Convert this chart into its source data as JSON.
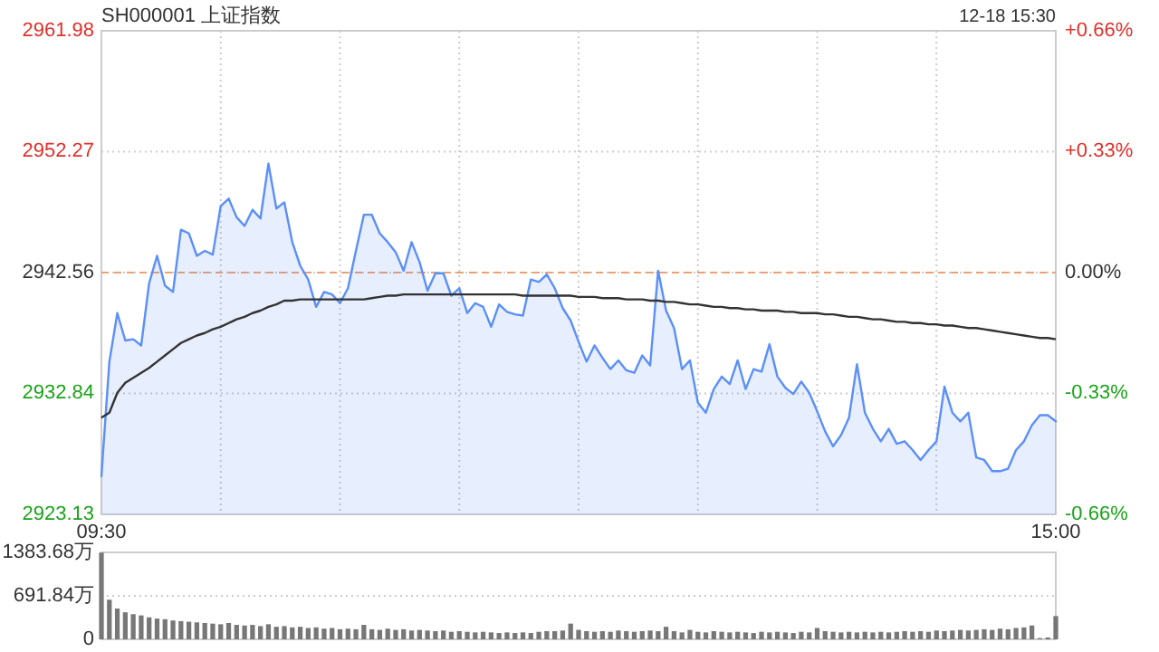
{
  "chart_data": [
    {
      "type": "line",
      "title": "SH000001 上证指数",
      "subtitle": "12-18 15:30",
      "categories": [
        "09:30",
        null,
        null,
        null,
        null,
        null,
        null,
        null,
        null,
        null,
        null,
        null,
        null,
        null,
        null,
        null,
        null,
        null,
        null,
        null,
        null,
        null,
        null,
        null,
        null,
        null,
        null,
        null,
        null,
        null,
        null,
        null,
        null,
        null,
        null,
        null,
        null,
        null,
        null,
        null,
        null,
        null,
        null,
        null,
        null,
        null,
        null,
        null,
        null,
        null,
        null,
        null,
        null,
        null,
        null,
        null,
        null,
        null,
        null,
        null,
        null,
        null,
        null,
        null,
        null,
        null,
        null,
        null,
        null,
        null,
        null,
        null,
        null,
        null,
        null,
        null,
        null,
        null,
        null,
        null,
        null,
        null,
        null,
        null,
        null,
        null,
        null,
        null,
        null,
        null,
        null,
        null,
        null,
        null,
        null,
        null,
        null,
        null,
        null,
        null,
        null,
        null,
        null,
        null,
        null,
        null,
        null,
        null,
        null,
        null,
        null,
        null,
        null,
        null,
        null,
        null,
        null,
        null,
        null,
        null,
        "15:00"
      ],
      "ylim": [
        2923.13,
        2961.98
      ],
      "yticks": [
        2923.13,
        2932.84,
        2942.56,
        2952.27,
        2961.98
      ],
      "y2lim": [
        -0.66,
        0.66
      ],
      "y2ticks": [
        {
          "value": -0.66,
          "label": "-0.66%"
        },
        {
          "value": -0.33,
          "label": "-0.33%"
        },
        {
          "value": 0,
          "label": "0.00%"
        },
        {
          "value": 0.33,
          "label": "+0.33%"
        },
        {
          "value": 0.66,
          "label": "+0.66%"
        }
      ],
      "grid": true,
      "marker": "none",
      "ref_lines": [
        {
          "axis": "y",
          "value": 2942.56,
          "color": "#f0a070",
          "line_style": "dashed"
        }
      ],
      "series": [
        {
          "type": "area",
          "color": "#5b8ff9",
          "values": [
            2926.2,
            2935.4,
            2939.3,
            2937.1,
            2937.2,
            2936.7,
            2941.7,
            2943.9,
            2941.5,
            2941.0,
            2946.0,
            2945.7,
            2943.9,
            2944.3,
            2944.0,
            2947.9,
            2948.5,
            2947.0,
            2946.3,
            2947.6,
            2946.9,
            2951.3,
            2947.7,
            2948.2,
            2945.0,
            2943.1,
            2942.0,
            2939.8,
            2941.0,
            2940.8,
            2940.1,
            2941.3,
            2944.3,
            2947.2,
            2947.2,
            2945.7,
            2945.0,
            2944.2,
            2942.7,
            2945.0,
            2943.4,
            2941.1,
            2942.5,
            2942.5,
            2940.7,
            2941.3,
            2939.3,
            2940.1,
            2939.8,
            2938.2,
            2940.0,
            2939.4,
            2939.2,
            2939.1,
            2942.0,
            2941.8,
            2942.4,
            2941.3,
            2939.7,
            2938.7,
            2937.0,
            2935.4,
            2936.7,
            2935.7,
            2934.8,
            2935.5,
            2934.7,
            2934.5,
            2935.9,
            2935.1,
            2942.7,
            2939.5,
            2938.1,
            2934.8,
            2935.5,
            2932.1,
            2931.3,
            2933.2,
            2934.2,
            2933.6,
            2935.5,
            2933.2,
            2934.8,
            2934.6,
            2936.8,
            2934.2,
            2933.3,
            2932.8,
            2933.8,
            2932.9,
            2931.4,
            2929.8,
            2928.6,
            2929.5,
            2930.9,
            2935.2,
            2931.3,
            2930.0,
            2929.0,
            2930.0,
            2928.8,
            2929.0,
            2928.3,
            2927.5,
            2928.3,
            2929.0,
            2933.4,
            2931.3,
            2930.6,
            2931.3,
            2927.7,
            2927.5,
            2926.6,
            2926.6,
            2926.8,
            2928.3,
            2929.0,
            2930.3,
            2931.1,
            2931.1,
            2930.6
          ]
        },
        {
          "color": "#333333",
          "values": [
            2930.9,
            2931.3,
            2932.9,
            2933.7,
            2934.1,
            2934.5,
            2934.9,
            2935.4,
            2935.9,
            2936.4,
            2936.9,
            2937.2,
            2937.5,
            2937.7,
            2938.0,
            2938.2,
            2938.5,
            2938.8,
            2939.0,
            2939.3,
            2939.5,
            2939.8,
            2940.0,
            2940.3,
            2940.3,
            2940.4,
            2940.4,
            2940.4,
            2940.4,
            2940.4,
            2940.4,
            2940.4,
            2940.4,
            2940.4,
            2940.5,
            2940.6,
            2940.7,
            2940.7,
            2940.8,
            2940.8,
            2940.8,
            2940.8,
            2940.8,
            2940.8,
            2940.8,
            2940.8,
            2940.8,
            2940.8,
            2940.8,
            2940.8,
            2940.8,
            2940.8,
            2940.8,
            2940.7,
            2940.7,
            2940.7,
            2940.7,
            2940.7,
            2940.7,
            2940.7,
            2940.6,
            2940.6,
            2940.6,
            2940.5,
            2940.5,
            2940.5,
            2940.4,
            2940.4,
            2940.4,
            2940.3,
            2940.3,
            2940.2,
            2940.2,
            2940.1,
            2940.0,
            2940.0,
            2939.9,
            2939.8,
            2939.8,
            2939.7,
            2939.7,
            2939.6,
            2939.6,
            2939.5,
            2939.5,
            2939.5,
            2939.4,
            2939.4,
            2939.3,
            2939.3,
            2939.3,
            2939.2,
            2939.2,
            2939.1,
            2939.0,
            2939.0,
            2938.9,
            2938.8,
            2938.8,
            2938.7,
            2938.6,
            2938.6,
            2938.5,
            2938.5,
            2938.4,
            2938.4,
            2938.3,
            2938.3,
            2938.2,
            2938.1,
            2938.1,
            2938.0,
            2937.9,
            2937.8,
            2937.7,
            2937.6,
            2937.5,
            2937.4,
            2937.3,
            2937.3,
            2937.2
          ]
        }
      ]
    },
    {
      "type": "bar",
      "categories": [
        null,
        null,
        null,
        null,
        null,
        null,
        null,
        null,
        null,
        null,
        null,
        null,
        null,
        null,
        null,
        null,
        null,
        null,
        null,
        null,
        null,
        null,
        null,
        null,
        null,
        null,
        null,
        null,
        null,
        null,
        null,
        null,
        null,
        null,
        null,
        null,
        null,
        null,
        null,
        null,
        null,
        null,
        null,
        null,
        null,
        null,
        null,
        null,
        null,
        null,
        null,
        null,
        null,
        null,
        null,
        null,
        null,
        null,
        null,
        null,
        null,
        null,
        null,
        null,
        null,
        null,
        null,
        null,
        null,
        null,
        null,
        null,
        null,
        null,
        null,
        null,
        null,
        null,
        null,
        null,
        null,
        null,
        null,
        null,
        null,
        null,
        null,
        null,
        null,
        null,
        null,
        null,
        null,
        null,
        null,
        null,
        null,
        null,
        null,
        null,
        null,
        null,
        null,
        null,
        null,
        null,
        null,
        null,
        null,
        null,
        null,
        null,
        null,
        null,
        null,
        null,
        null,
        null,
        null,
        null,
        null
      ],
      "ylim": [
        0,
        1383.68
      ],
      "yticks": [
        {
          "value": 0,
          "label": "0"
        },
        {
          "value": 691.84,
          "label": "691.84万"
        },
        {
          "value": 1383.68,
          "label": "1383.68万"
        }
      ],
      "grid": "y",
      "tick_labels": "y",
      "color": "#777777",
      "values": [
        1380,
        630,
        490,
        430,
        400,
        380,
        350,
        330,
        320,
        300,
        290,
        280,
        270,
        260,
        250,
        240,
        260,
        230,
        220,
        230,
        210,
        240,
        200,
        210,
        190,
        200,
        180,
        190,
        170,
        180,
        160,
        170,
        160,
        230,
        160,
        150,
        170,
        150,
        160,
        140,
        150,
        140,
        130,
        140,
        120,
        130,
        120,
        110,
        120,
        110,
        100,
        110,
        100,
        110,
        100,
        120,
        130,
        130,
        140,
        250,
        150,
        130,
        120,
        130,
        120,
        140,
        130,
        120,
        130,
        140,
        130,
        200,
        130,
        110,
        150,
        120,
        110,
        130,
        120,
        110,
        120,
        110,
        100,
        120,
        110,
        120,
        110,
        100,
        120,
        110,
        180,
        130,
        120,
        110,
        120,
        110,
        120,
        110,
        120,
        110,
        120,
        130,
        120,
        130,
        120,
        140,
        130,
        140,
        150,
        140,
        150,
        160,
        150,
        170,
        160,
        180,
        190,
        220,
        20,
        30,
        370
      ]
    }
  ]
}
